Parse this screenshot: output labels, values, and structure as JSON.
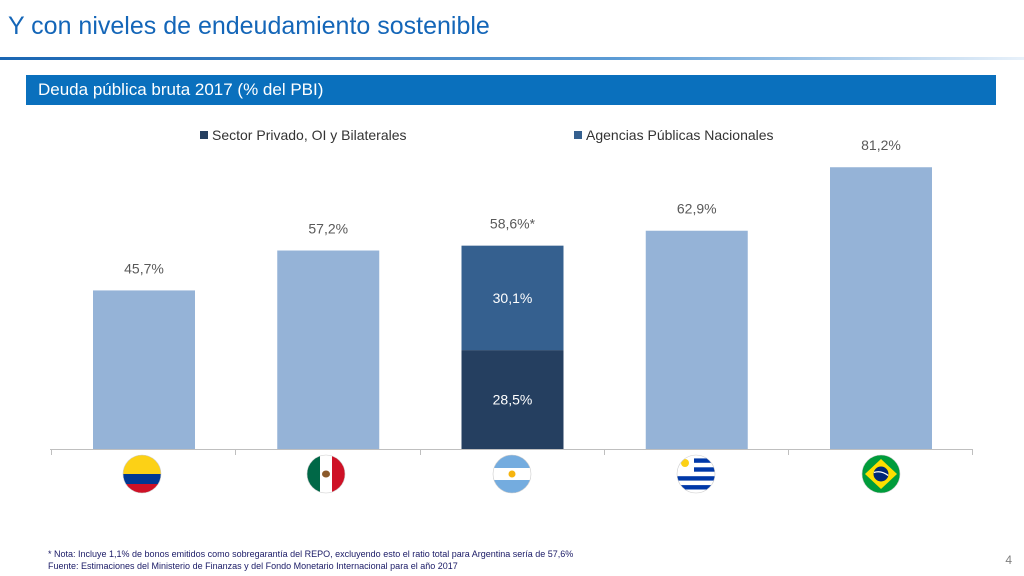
{
  "slide": {
    "title": "Y con niveles de endeudamiento sostenible",
    "banner": "Deuda pública bruta 2017 (% del PBI)",
    "page_number": "4"
  },
  "legend": [
    {
      "label": "Sector Privado, OI y Bilaterales",
      "color": "#253f60"
    },
    {
      "label": "Agencias Públicas Nacionales",
      "color": "#35608f"
    }
  ],
  "flags": [
    {
      "country": "Colombia",
      "icon": "colombia-flag-icon"
    },
    {
      "country": "México",
      "icon": "mexico-flag-icon"
    },
    {
      "country": "Argentina",
      "icon": "argentina-flag-icon"
    },
    {
      "country": "Uruguay",
      "icon": "uruguay-flag-icon"
    },
    {
      "country": "Brasil",
      "icon": "brazil-flag-icon"
    }
  ],
  "chart_data": {
    "type": "bar",
    "categories": [
      "Colombia",
      "México",
      "Argentina",
      "Uruguay",
      "Brasil"
    ],
    "values": [
      45.7,
      57.2,
      58.6,
      62.9,
      81.2
    ],
    "value_labels": [
      "45,7%",
      "57,2%",
      "58,6%*",
      "62,9%",
      "81,2%"
    ],
    "stacked_category": "Argentina",
    "stack": [
      {
        "name": "Sector Privado, OI y Bilaterales",
        "value": 28.5,
        "label": "28,5%",
        "color": "#253f60"
      },
      {
        "name": "Agencias Públicas Nacionales",
        "value": 30.1,
        "label": "30,1%",
        "color": "#35608f"
      }
    ],
    "bar_color": "#95b3d7",
    "ylim": [
      0,
      90
    ],
    "grid": false,
    "legend_position": "top"
  },
  "footnotes": {
    "note": "* Nota: Incluye 1,1% de bonos emitidos como sobregarantía del REPO, excluyendo esto el ratio total para Argentina sería de 57,6%",
    "source": "Fuente: Estimaciones del Ministerio de Finanzas y del Fondo Monetario Internacional para el año 2017"
  }
}
